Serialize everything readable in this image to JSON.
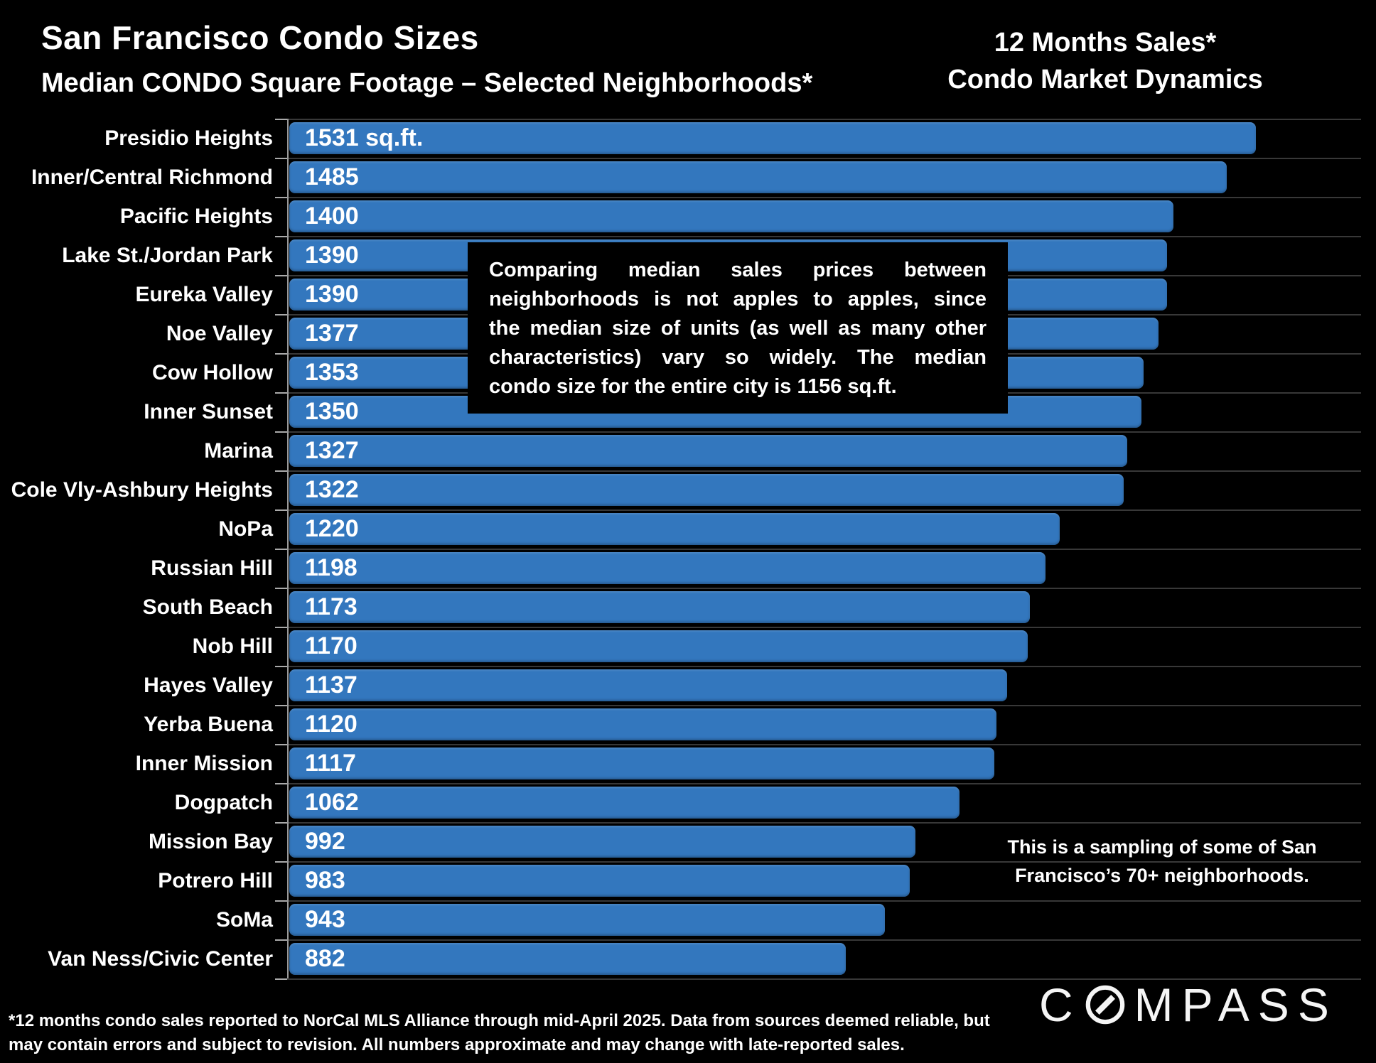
{
  "header": {
    "title": "San Francisco Condo Sizes",
    "subtitle": "Median CONDO Square Footage – Selected Neighborhoods*",
    "right_line1": "12 Months Sales*",
    "right_line2": "Condo Market Dynamics"
  },
  "chart_data": {
    "type": "bar",
    "orientation": "horizontal",
    "title": "Median CONDO Square Footage – Selected Neighborhoods",
    "xlabel": "",
    "ylabel": "",
    "unit": "sq.ft.",
    "xlim": [
      0,
      1531
    ],
    "grid": true,
    "legend_position": "none",
    "categories": [
      "Presidio Heights",
      "Inner/Central Richmond",
      "Pacific Heights",
      "Lake St./Jordan Park",
      "Eureka Valley",
      "Noe Valley",
      "Cow Hollow",
      "Inner Sunset",
      "Marina",
      "Cole Vly-Ashbury Heights",
      "NoPa",
      "Russian Hill",
      "South Beach",
      "Nob Hill",
      "Hayes Valley",
      "Yerba Buena",
      "Inner Mission",
      "Dogpatch",
      "Mission Bay",
      "Potrero Hill",
      "SoMa",
      "Van Ness/Civic Center"
    ],
    "values": [
      1531,
      1485,
      1400,
      1390,
      1390,
      1377,
      1353,
      1350,
      1327,
      1322,
      1220,
      1198,
      1173,
      1170,
      1137,
      1120,
      1117,
      1062,
      992,
      983,
      943,
      882
    ],
    "first_bar_value_label": "1531 sq.ft.",
    "citywide_median_sqft": 1156,
    "colors": {
      "bar": "#3377be",
      "gridline": "#383838",
      "axis": "#9a9a9a",
      "background": "#000000",
      "text": "#ffffff"
    }
  },
  "overlay_note": {
    "lines": [
      "Comparing median sales prices between",
      "neighborhoods is not apples to apples, since",
      "the median size of units (as well as many other",
      "characteristics) vary so widely. The median",
      "condo size for the entire city is 1156 sq.ft."
    ]
  },
  "sampling_note": {
    "lines": [
      "This is a sampling of some of San",
      "Francisco’s 70+ neighborhoods."
    ]
  },
  "footnote": {
    "lines": [
      "*12 months condo sales reported to NorCal MLS Alliance through mid-April 2025. Data from sources deemed reliable, but",
      "may contain errors and subject to revision. All numbers approximate and may change with late-reported sales."
    ]
  },
  "logo_text": "COMPASS"
}
